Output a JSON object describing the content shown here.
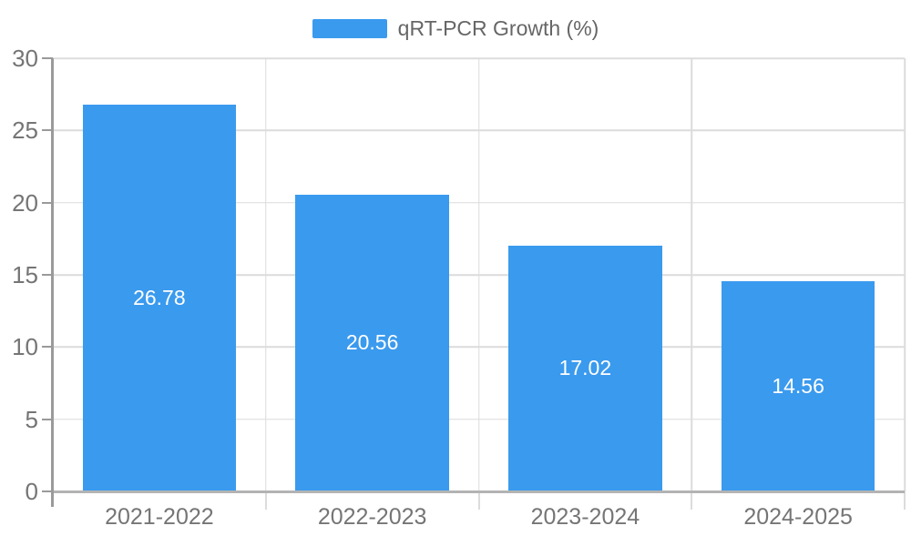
{
  "legend": {
    "label": "qRT-PCR Growth (%)"
  },
  "chart_data": {
    "type": "bar",
    "title": "qRT-PCR Growth (%)",
    "categories": [
      "2021-2022",
      "2022-2023",
      "2023-2024",
      "2024-2025"
    ],
    "series": [
      {
        "name": "qRT-PCR Growth (%)",
        "color": "#3A9AEE",
        "values": [
          26.78,
          20.56,
          17.02,
          14.56
        ]
      }
    ],
    "data_labels": [
      "26.78",
      "20.56",
      "17.02",
      "14.56"
    ],
    "xlabel": "",
    "ylabel": "",
    "ylim": [
      0,
      30
    ],
    "yticks": [
      0,
      5,
      10,
      15,
      20,
      25,
      30
    ],
    "grid": true,
    "legend_position": "top",
    "bar_width_fraction": 0.72
  },
  "style": {
    "background": "#ffffff",
    "bar_color": "#3A9AEE",
    "gridline_color": "#dcdcdc",
    "baseline_color": "#b3b3b3",
    "axis_line_color": "#9a9a9a",
    "y_tick_color": "#9a9a9a",
    "x_boundary_tick_color": "#dcdcdc",
    "axis_label_color": "#757575",
    "legend_text_color": "#666666",
    "value_label_color": "#ffffff"
  }
}
